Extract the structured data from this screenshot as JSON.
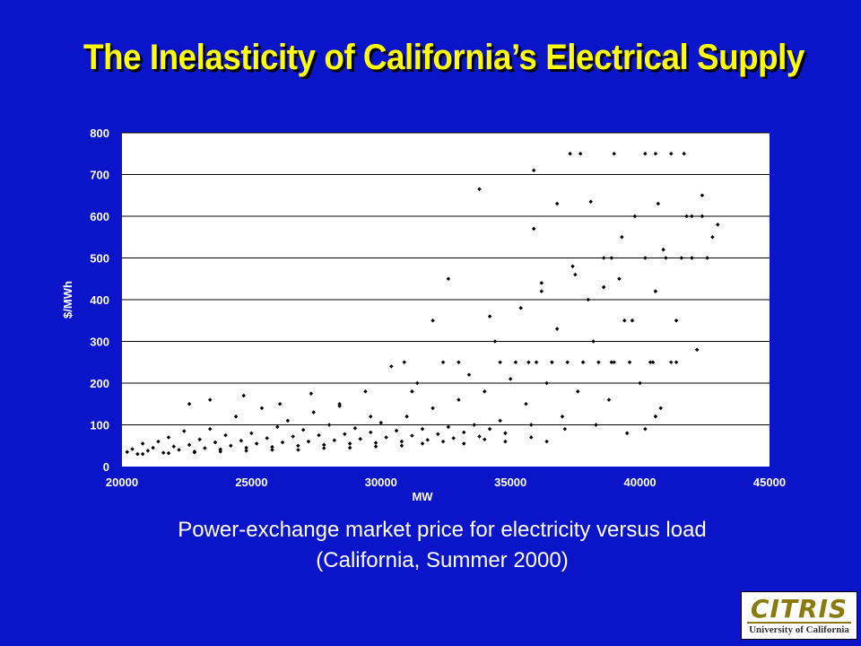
{
  "slide": {
    "title": "The Inelasticity of California’s Electrical Supply",
    "caption_line1": "Power-exchange market price for electricity versus load",
    "caption_line2": "(California, Summer 2000)",
    "logo_text": "CITRIS",
    "logo_subtext": "University of California"
  },
  "colors": {
    "background": "#0a14c8",
    "title": "#ffff00",
    "plot_bg": "#ffffff",
    "points": "#000000",
    "axis_text": "#ffffff"
  },
  "chart_data": {
    "type": "scatter",
    "title": "",
    "xlabel": "MW",
    "ylabel": "$/MWh",
    "xlim": [
      20000,
      45000
    ],
    "ylim": [
      0,
      800
    ],
    "x_ticks": [
      20000,
      25000,
      30000,
      35000,
      40000,
      45000
    ],
    "y_ticks": [
      0,
      100,
      200,
      300,
      400,
      500,
      600,
      700,
      800
    ],
    "grid": "horizontal",
    "legend": "none",
    "series": [
      {
        "points": [
          [
            20200,
            35
          ],
          [
            20400,
            42
          ],
          [
            20600,
            30
          ],
          [
            20800,
            55
          ],
          [
            21000,
            38
          ],
          [
            21200,
            45
          ],
          [
            21400,
            60
          ],
          [
            21600,
            33
          ],
          [
            21800,
            70
          ],
          [
            22000,
            48
          ],
          [
            22200,
            40
          ],
          [
            22400,
            85
          ],
          [
            22600,
            52
          ],
          [
            22800,
            36
          ],
          [
            23000,
            65
          ],
          [
            23200,
            44
          ],
          [
            23400,
            90
          ],
          [
            23600,
            58
          ],
          [
            23800,
            41
          ],
          [
            24000,
            75
          ],
          [
            24200,
            50
          ],
          [
            24400,
            120
          ],
          [
            24600,
            62
          ],
          [
            24800,
            45
          ],
          [
            25000,
            80
          ],
          [
            25200,
            55
          ],
          [
            25400,
            140
          ],
          [
            25600,
            68
          ],
          [
            25800,
            47
          ],
          [
            26000,
            95
          ],
          [
            26200,
            58
          ],
          [
            26400,
            110
          ],
          [
            26600,
            72
          ],
          [
            26800,
            50
          ],
          [
            27000,
            88
          ],
          [
            27200,
            60
          ],
          [
            27400,
            130
          ],
          [
            27600,
            75
          ],
          [
            27800,
            52
          ],
          [
            28000,
            100
          ],
          [
            28200,
            63
          ],
          [
            28400,
            150
          ],
          [
            28600,
            78
          ],
          [
            28800,
            55
          ],
          [
            29000,
            92
          ],
          [
            29200,
            66
          ],
          [
            29400,
            180
          ],
          [
            29600,
            82
          ],
          [
            29800,
            57
          ],
          [
            30000,
            105
          ],
          [
            30200,
            70
          ],
          [
            30400,
            240
          ],
          [
            30600,
            86
          ],
          [
            30800,
            60
          ],
          [
            31000,
            120
          ],
          [
            31200,
            74
          ],
          [
            31400,
            200
          ],
          [
            31600,
            90
          ],
          [
            31800,
            64
          ],
          [
            32000,
            140
          ],
          [
            32200,
            78
          ],
          [
            32400,
            250
          ],
          [
            32600,
            95
          ],
          [
            32800,
            68
          ],
          [
            33000,
            160
          ],
          [
            33200,
            82
          ],
          [
            33400,
            220
          ],
          [
            33600,
            100
          ],
          [
            33800,
            72
          ],
          [
            34000,
            180
          ],
          [
            34200,
            90
          ],
          [
            34400,
            300
          ],
          [
            34600,
            110
          ],
          [
            34800,
            80
          ],
          [
            35000,
            210
          ],
          [
            35200,
            250
          ],
          [
            35400,
            380
          ],
          [
            35600,
            150
          ],
          [
            35800,
            100
          ],
          [
            36000,
            250
          ],
          [
            36200,
            420
          ],
          [
            36400,
            200
          ],
          [
            36600,
            250
          ],
          [
            36800,
            330
          ],
          [
            37000,
            120
          ],
          [
            37200,
            250
          ],
          [
            37400,
            480
          ],
          [
            37600,
            180
          ],
          [
            37800,
            250
          ],
          [
            38000,
            400
          ],
          [
            38200,
            300
          ],
          [
            38400,
            250
          ],
          [
            38600,
            500
          ],
          [
            38800,
            160
          ],
          [
            39000,
            250
          ],
          [
            39200,
            450
          ],
          [
            39400,
            350
          ],
          [
            39600,
            250
          ],
          [
            39800,
            600
          ],
          [
            40000,
            200
          ],
          [
            40200,
            500
          ],
          [
            40400,
            250
          ],
          [
            40600,
            420
          ],
          [
            40800,
            140
          ],
          [
            41000,
            500
          ],
          [
            41200,
            250
          ],
          [
            41400,
            350
          ],
          [
            41600,
            500
          ],
          [
            41800,
            600
          ],
          [
            42000,
            500
          ],
          [
            42200,
            280
          ],
          [
            42400,
            650
          ],
          [
            42600,
            500
          ],
          [
            42800,
            550
          ],
          [
            43000,
            580
          ],
          [
            33800,
            665
          ],
          [
            35900,
            710
          ],
          [
            35900,
            570
          ],
          [
            37300,
            750
          ],
          [
            37700,
            750
          ],
          [
            39000,
            750
          ],
          [
            40200,
            750
          ],
          [
            40600,
            750
          ],
          [
            41200,
            750
          ],
          [
            41700,
            750
          ],
          [
            36800,
            630
          ],
          [
            38100,
            635
          ],
          [
            40700,
            630
          ],
          [
            42000,
            600
          ],
          [
            42400,
            600
          ],
          [
            32600,
            450
          ],
          [
            32000,
            350
          ],
          [
            34200,
            360
          ],
          [
            36200,
            440
          ],
          [
            37500,
            460
          ],
          [
            38600,
            430
          ],
          [
            39300,
            550
          ],
          [
            40900,
            520
          ],
          [
            38900,
            500
          ],
          [
            39700,
            350
          ],
          [
            22600,
            150
          ],
          [
            23400,
            160
          ],
          [
            24700,
            170
          ],
          [
            26100,
            150
          ],
          [
            27300,
            175
          ],
          [
            28400,
            145
          ],
          [
            29600,
            120
          ],
          [
            31200,
            180
          ],
          [
            30900,
            250
          ],
          [
            33000,
            250
          ],
          [
            34600,
            250
          ],
          [
            35700,
            250
          ],
          [
            36600,
            250
          ],
          [
            37800,
            250
          ],
          [
            38900,
            250
          ],
          [
            40500,
            250
          ],
          [
            41400,
            250
          ],
          [
            39500,
            80
          ],
          [
            40200,
            90
          ],
          [
            40600,
            120
          ],
          [
            38300,
            100
          ],
          [
            37100,
            90
          ],
          [
            36400,
            60
          ],
          [
            35800,
            70
          ],
          [
            34800,
            60
          ],
          [
            34000,
            65
          ],
          [
            33200,
            55
          ],
          [
            32400,
            60
          ],
          [
            31600,
            55
          ],
          [
            30800,
            50
          ],
          [
            29800,
            48
          ],
          [
            28800,
            45
          ],
          [
            27800,
            44
          ],
          [
            26800,
            40
          ],
          [
            25800,
            40
          ],
          [
            24800,
            38
          ],
          [
            23800,
            36
          ],
          [
            22800,
            34
          ],
          [
            21800,
            32
          ],
          [
            20800,
            30
          ]
        ]
      }
    ]
  }
}
